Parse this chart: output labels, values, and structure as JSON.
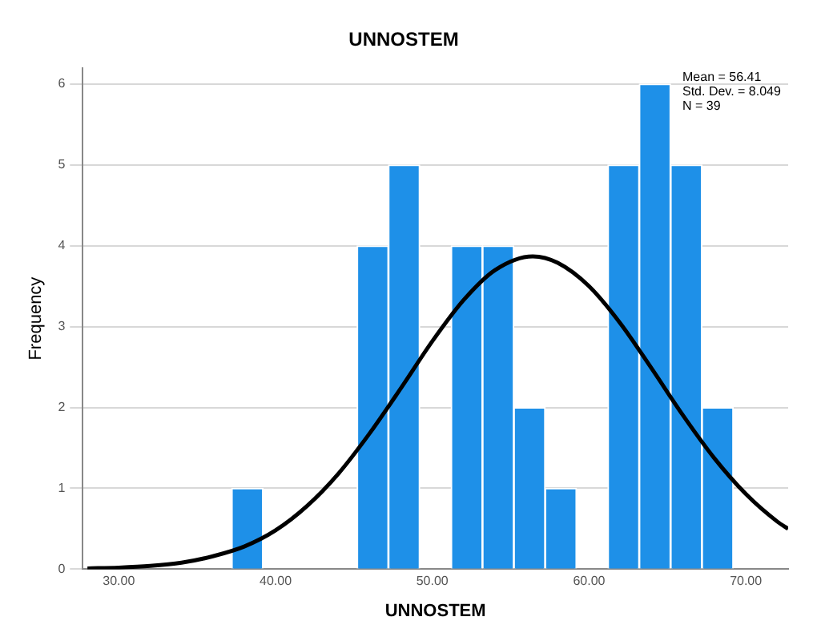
{
  "chart_data": {
    "type": "histogram",
    "title": "UNNOSTEM",
    "xlabel": "UNNOSTEM",
    "ylabel": "Frequency",
    "bins": [
      37.2,
      39.2,
      41.2,
      43.2,
      45.2,
      47.2,
      49.2,
      51.2,
      53.2,
      55.2,
      57.2,
      59.2,
      61.2,
      63.2,
      65.2,
      67.2,
      69.2
    ],
    "values": [
      1,
      0,
      0,
      0,
      4,
      5,
      0,
      4,
      4,
      2,
      1,
      0,
      5,
      6,
      5,
      2
    ],
    "color": "#1e90e8",
    "series": [
      {
        "type": "line",
        "color": "#000000",
        "x": [
          28,
          30,
          32,
          34,
          36,
          38,
          40,
          42,
          44,
          46,
          48,
          50,
          52,
          54,
          56.41,
          58,
          60,
          62,
          64,
          66,
          68,
          70,
          72,
          72.7
        ],
        "values": [
          0.01,
          0.02,
          0.04,
          0.08,
          0.16,
          0.28,
          0.48,
          0.78,
          1.18,
          1.68,
          2.24,
          2.82,
          3.33,
          3.7,
          3.87,
          3.79,
          3.5,
          3.04,
          2.48,
          1.9,
          1.37,
          0.93,
          0.59,
          0.5
        ]
      }
    ],
    "xlim": [
      27.7,
      72.7
    ],
    "xticks": [
      {
        "value": 30,
        "label": "30.00"
      },
      {
        "value": 40,
        "label": "40.00"
      },
      {
        "value": 50,
        "label": "50.00"
      },
      {
        "value": 60,
        "label": "60.00"
      },
      {
        "value": 70,
        "label": "70.00"
      }
    ],
    "ylim": [
      0,
      6.2
    ],
    "yticks": [
      0,
      1,
      2,
      3,
      4,
      5,
      6
    ],
    "grid": "y",
    "annotations": [
      "Mean = 56.41",
      "Std. Dev. = 8.049",
      "N = 39"
    ]
  }
}
